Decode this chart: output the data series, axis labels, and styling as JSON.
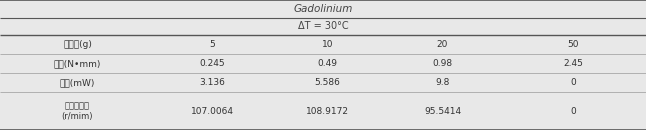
{
  "title": "Gadolinium",
  "subtitle": "ΔT = 30°C",
  "row_labels": [
    "추진량(g)",
    "토크(N•mm)",
    "출력(mW)",
    "분당회전수\n(r/mim)"
  ],
  "data": [
    [
      "5",
      "10",
      "20",
      "50"
    ],
    [
      "0.245",
      "0.49",
      "0.98",
      "2.45"
    ],
    [
      "3.136",
      "5.586",
      "9.8",
      "0"
    ],
    [
      "107.0064",
      "108.9172",
      "95.5414",
      "0"
    ]
  ],
  "bg_color": "#e8e8e8",
  "text_color": "#333333",
  "thick_line_color": "#555555",
  "thin_line_color": "#999999",
  "figsize": [
    6.46,
    1.3
  ],
  "dpi": 100
}
